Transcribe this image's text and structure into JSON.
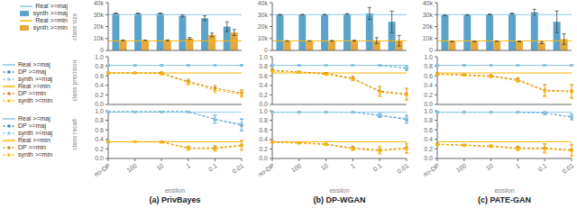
{
  "chart_data": [
    {
      "type": "bar",
      "y_label": "class size",
      "categories": [
        "no-DP",
        "100",
        "10",
        "1",
        "0.1",
        "0.01"
      ],
      "ylim": [
        0,
        40000
      ],
      "yticks": [
        0,
        {
          "value": 10000,
          "label": "10k"
        },
        {
          "value": 20000,
          "label": "20k"
        },
        {
          "value": 30000,
          "label": "30k"
        },
        {
          "value": 40000,
          "label": "40k"
        }
      ],
      "tick_labels": "y",
      "grid": false,
      "legend": "upper right",
      "series": [
        {
          "name": "Real >=maj",
          "type": "hline",
          "color": "#8ECAE6",
          "value": 30000
        },
        {
          "name": "synth >=maj",
          "type": "bar",
          "color": "#5BA3C9",
          "values": [
            31000,
            31000,
            31000,
            29000,
            27000,
            20000
          ],
          "errors": [
            300,
            300,
            400,
            800,
            2000,
            4000
          ]
        },
        {
          "name": "Real >=min",
          "type": "hline",
          "color": "#FFB703",
          "value": 8000
        },
        {
          "name": "synth >=min",
          "type": "bar",
          "color": "#E8A838",
          "values": [
            8500,
            8500,
            8500,
            10000,
            13000,
            15000
          ],
          "errors": [
            200,
            200,
            300,
            800,
            1500,
            2500
          ]
        }
      ]
    },
    {
      "type": "bar",
      "categories": [
        "no-DP",
        "100",
        "10",
        "1",
        "0.1",
        "0.01"
      ],
      "ylim": [
        0,
        40000
      ],
      "yticks": [
        0,
        {
          "value": 10000,
          "label": "10k"
        },
        {
          "value": 20000,
          "label": "20k"
        },
        {
          "value": 30000,
          "label": "30k"
        },
        {
          "value": 40000,
          "label": "40k"
        }
      ],
      "tick_labels": "y",
      "grid": false,
      "series": [
        {
          "type": "hline",
          "color": "#8ECAE6",
          "value": 30000
        },
        {
          "type": "bar",
          "color": "#5BA3C9",
          "values": [
            30000,
            30000,
            30000,
            30500,
            31000,
            24000
          ],
          "errors": [
            200,
            200,
            200,
            300,
            5000,
            9000
          ]
        },
        {
          "type": "hline",
          "color": "#FFB703",
          "value": 8000
        },
        {
          "type": "bar",
          "color": "#E8A838",
          "values": [
            8000,
            8000,
            8100,
            8200,
            8200,
            8100
          ],
          "errors": [
            100,
            100,
            150,
            300,
            2500,
            4500
          ]
        }
      ]
    },
    {
      "type": "bar",
      "categories": [
        "no-DP",
        "100",
        "10",
        "1",
        "0.1",
        "0.01"
      ],
      "ylim": [
        0,
        40000
      ],
      "yticks": [
        0,
        {
          "value": 10000,
          "label": "10k"
        },
        {
          "value": 20000,
          "label": "20k"
        },
        {
          "value": 30000,
          "label": "30k"
        },
        {
          "value": 40000,
          "label": "40k"
        }
      ],
      "tick_labels": "y",
      "grid": false,
      "series": [
        {
          "type": "hline",
          "color": "#8ECAE6",
          "value": 30000
        },
        {
          "type": "bar",
          "color": "#5BA3C9",
          "values": [
            29500,
            29800,
            30200,
            30800,
            32000,
            24000
          ],
          "errors": [
            200,
            200,
            300,
            500,
            2500,
            9000
          ]
        },
        {
          "type": "hline",
          "color": "#FFB703",
          "value": 8000
        },
        {
          "type": "bar",
          "color": "#E8A838",
          "values": [
            7500,
            7600,
            7700,
            7500,
            6500,
            9500
          ],
          "errors": [
            100,
            100,
            150,
            350,
            800,
            4500
          ]
        }
      ]
    },
    {
      "type": "line",
      "y_label": "class precision",
      "categories": [
        "no-DP",
        "100",
        "10",
        "1",
        "0.1",
        "0.01"
      ],
      "ylim": [
        0,
        1
      ],
      "yticks": [
        {
          "value": 0,
          "label": "0.0"
        },
        0.2,
        0.4,
        0.6,
        0.8,
        {
          "value": 1,
          "label": "1.0"
        }
      ],
      "tick_labels": "y",
      "grid": false,
      "legend": "lower left",
      "series": [
        {
          "name": "Real >=maj",
          "type": "hline",
          "color": "#8ECAE6",
          "value": 0.82
        },
        {
          "name": "DP >=maj",
          "type": "line",
          "color": "#3A7FB5",
          "line_style": "dashed",
          "marker": "square",
          "values": [
            0.82,
            0.82,
            0.82,
            0.82,
            0.82,
            0.82
          ],
          "errors": [
            0.005,
            0.005,
            0.005,
            0.005,
            0.005,
            0.005
          ]
        },
        {
          "name": "synth >=maj",
          "type": "line",
          "color": "#8ECAE6",
          "line_style": "dashed",
          "marker": "square",
          "values": [
            0.82,
            0.82,
            0.82,
            0.82,
            0.82,
            0.82
          ],
          "errors": [
            0.005,
            0.005,
            0.005,
            0.005,
            0.005,
            0.005
          ]
        },
        {
          "name": "Real >=min",
          "type": "hline",
          "color": "#FFB703",
          "value": 0.66
        },
        {
          "name": "DP >=min",
          "type": "line",
          "color": "#C8861A",
          "line_style": "dashed",
          "marker": "square",
          "values": [
            0.66,
            0.66,
            0.66,
            0.48,
            0.34,
            0.24
          ],
          "errors": [
            0.01,
            0.01,
            0.02,
            0.05,
            0.06,
            0.07
          ]
        },
        {
          "name": "synth >=min",
          "type": "line",
          "color": "#FFB703",
          "line_style": "dashed",
          "marker": "square",
          "values": [
            0.66,
            0.66,
            0.64,
            0.46,
            0.3,
            0.22
          ],
          "errors": [
            0.01,
            0.01,
            0.02,
            0.05,
            0.06,
            0.07
          ]
        }
      ]
    },
    {
      "type": "line",
      "categories": [
        "no-DP",
        "100",
        "10",
        "1",
        "0.1",
        "0.01"
      ],
      "ylim": [
        0,
        1
      ],
      "yticks": [
        {
          "value": 0,
          "label": "0.0"
        },
        0.2,
        0.4,
        0.6,
        0.8,
        {
          "value": 1,
          "label": "1.0"
        }
      ],
      "tick_labels": "y",
      "grid": false,
      "series": [
        {
          "type": "hline",
          "color": "#8ECAE6",
          "value": 0.82
        },
        {
          "type": "line",
          "color": "#3A7FB5",
          "line_style": "dashed",
          "marker": "square",
          "values": [
            0.82,
            0.82,
            0.82,
            0.82,
            0.82,
            0.76
          ],
          "errors": [
            0.005,
            0.005,
            0.005,
            0.005,
            0.005,
            0.05
          ]
        },
        {
          "type": "line",
          "color": "#8ECAE6",
          "line_style": "dashed",
          "marker": "square",
          "values": [
            0.82,
            0.82,
            0.82,
            0.82,
            0.82,
            0.77
          ],
          "errors": [
            0.005,
            0.005,
            0.005,
            0.005,
            0.005,
            0.05
          ]
        },
        {
          "type": "hline",
          "color": "#FFB703",
          "value": 0.66
        },
        {
          "type": "line",
          "color": "#C8861A",
          "line_style": "dashed",
          "marker": "square",
          "values": [
            0.72,
            0.68,
            0.65,
            0.55,
            0.28,
            0.22
          ],
          "errors": [
            0.015,
            0.015,
            0.02,
            0.04,
            0.1,
            0.12
          ]
        },
        {
          "type": "line",
          "color": "#FFB703",
          "line_style": "dashed",
          "marker": "square",
          "values": [
            0.7,
            0.67,
            0.63,
            0.53,
            0.26,
            0.2
          ],
          "errors": [
            0.015,
            0.015,
            0.02,
            0.04,
            0.1,
            0.12
          ]
        }
      ]
    },
    {
      "type": "line",
      "categories": [
        "no-DP",
        "100",
        "10",
        "1",
        "0.1",
        "0.01"
      ],
      "ylim": [
        0,
        1
      ],
      "yticks": [
        {
          "value": 0,
          "label": "0.0"
        },
        0.2,
        0.4,
        0.6,
        0.8,
        {
          "value": 1,
          "label": "1.0"
        }
      ],
      "tick_labels": "y",
      "grid": false,
      "series": [
        {
          "type": "hline",
          "color": "#8ECAE6",
          "value": 0.82
        },
        {
          "type": "line",
          "color": "#3A7FB5",
          "line_style": "dashed",
          "marker": "square",
          "values": [
            0.82,
            0.82,
            0.82,
            0.82,
            0.82,
            0.82
          ],
          "errors": [
            0.005,
            0.005,
            0.005,
            0.005,
            0.005,
            0.005
          ]
        },
        {
          "type": "line",
          "color": "#8ECAE6",
          "line_style": "dashed",
          "marker": "square",
          "values": [
            0.82,
            0.82,
            0.82,
            0.82,
            0.82,
            0.82
          ],
          "errors": [
            0.005,
            0.005,
            0.005,
            0.005,
            0.005,
            0.005
          ]
        },
        {
          "type": "hline",
          "color": "#FFB703",
          "value": 0.66
        },
        {
          "type": "line",
          "color": "#C8861A",
          "line_style": "dashed",
          "marker": "square",
          "values": [
            0.64,
            0.62,
            0.6,
            0.52,
            0.3,
            0.28
          ],
          "errors": [
            0.015,
            0.015,
            0.02,
            0.04,
            0.12,
            0.14
          ]
        },
        {
          "type": "line",
          "color": "#FFB703",
          "line_style": "dashed",
          "marker": "square",
          "values": [
            0.63,
            0.61,
            0.58,
            0.5,
            0.28,
            0.26
          ],
          "errors": [
            0.015,
            0.015,
            0.02,
            0.04,
            0.12,
            0.14
          ]
        }
      ]
    },
    {
      "type": "line",
      "title": "(a) PrivBayes",
      "x_label": "epsilon",
      "y_label": "class recall",
      "categories": [
        "no-DP",
        "100",
        "10",
        "1",
        "0.1",
        "0.01"
      ],
      "ylim": [
        0,
        1
      ],
      "yticks": [
        {
          "value": 0,
          "label": "0.0"
        },
        0.2,
        0.4,
        0.6,
        0.8,
        {
          "value": 1,
          "label": "1.0"
        }
      ],
      "grid": false,
      "legend": "lower left",
      "series": [
        {
          "name": "Real >=maj",
          "type": "hline",
          "color": "#8ECAE6",
          "value": 0.97
        },
        {
          "name": "DP >=maj",
          "type": "line",
          "color": "#3A7FB5",
          "line_style": "dashed",
          "marker": "square",
          "values": [
            0.98,
            0.98,
            0.98,
            0.98,
            0.82,
            0.7
          ],
          "errors": [
            0.005,
            0.005,
            0.005,
            0.005,
            0.08,
            0.12
          ]
        },
        {
          "name": "synth >=maj",
          "type": "line",
          "color": "#8ECAE6",
          "line_style": "dashed",
          "marker": "square",
          "values": [
            0.98,
            0.98,
            0.98,
            0.98,
            0.83,
            0.72
          ],
          "errors": [
            0.005,
            0.005,
            0.005,
            0.005,
            0.08,
            0.12
          ]
        },
        {
          "name": "Real >=min",
          "type": "hline",
          "color": "#FFB703",
          "value": 0.35
        },
        {
          "name": "DP >=min",
          "type": "line",
          "color": "#C8861A",
          "line_style": "dashed",
          "marker": "square",
          "values": [
            0.35,
            0.35,
            0.35,
            0.22,
            0.22,
            0.28
          ],
          "errors": [
            0.01,
            0.01,
            0.01,
            0.04,
            0.05,
            0.1
          ]
        },
        {
          "name": "synth >=min",
          "type": "line",
          "color": "#FFB703",
          "line_style": "dashed",
          "marker": "square",
          "values": [
            0.35,
            0.35,
            0.34,
            0.21,
            0.2,
            0.27
          ],
          "errors": [
            0.01,
            0.01,
            0.01,
            0.04,
            0.05,
            0.1
          ]
        }
      ]
    },
    {
      "type": "line",
      "title": "(b) DP-WGAN",
      "x_label": "epsilon",
      "categories": [
        "no-DP",
        "100",
        "10",
        "1",
        "0.1",
        "0.01"
      ],
      "ylim": [
        0,
        1
      ],
      "yticks": [
        {
          "value": 0,
          "label": "0.0"
        },
        0.2,
        0.4,
        0.6,
        0.8,
        {
          "value": 1,
          "label": "1.0"
        }
      ],
      "grid": false,
      "series": [
        {
          "type": "hline",
          "color": "#8ECAE6",
          "value": 0.97
        },
        {
          "type": "line",
          "color": "#3A7FB5",
          "line_style": "dashed",
          "marker": "square",
          "values": [
            0.97,
            0.97,
            0.97,
            0.97,
            0.9,
            0.82
          ],
          "errors": [
            0.005,
            0.005,
            0.005,
            0.005,
            0.04,
            0.08
          ]
        },
        {
          "type": "line",
          "color": "#8ECAE6",
          "line_style": "dashed",
          "marker": "square",
          "values": [
            0.97,
            0.97,
            0.97,
            0.97,
            0.91,
            0.84
          ],
          "errors": [
            0.005,
            0.005,
            0.005,
            0.005,
            0.04,
            0.08
          ]
        },
        {
          "type": "hline",
          "color": "#FFB703",
          "value": 0.35
        },
        {
          "type": "line",
          "color": "#C8861A",
          "line_style": "dashed",
          "marker": "square",
          "values": [
            0.35,
            0.33,
            0.3,
            0.22,
            0.18,
            0.22
          ],
          "errors": [
            0.015,
            0.015,
            0.02,
            0.04,
            0.07,
            0.1
          ]
        },
        {
          "type": "line",
          "color": "#FFB703",
          "line_style": "dashed",
          "marker": "square",
          "values": [
            0.34,
            0.32,
            0.29,
            0.2,
            0.16,
            0.2
          ],
          "errors": [
            0.015,
            0.015,
            0.02,
            0.04,
            0.07,
            0.1
          ]
        }
      ]
    },
    {
      "type": "line",
      "title": "(c) PATE-GAN",
      "x_label": "epsilon",
      "categories": [
        "no-DP",
        "100",
        "10",
        "1",
        "0.1",
        "0.01"
      ],
      "ylim": [
        0,
        1
      ],
      "yticks": [
        {
          "value": 0,
          "label": "0.0"
        },
        0.2,
        0.4,
        0.6,
        0.8,
        {
          "value": 1,
          "label": "1.0"
        }
      ],
      "grid": false,
      "series": [
        {
          "type": "hline",
          "color": "#8ECAE6",
          "value": 0.97
        },
        {
          "type": "line",
          "color": "#3A7FB5",
          "line_style": "dashed",
          "marker": "square",
          "values": [
            0.97,
            0.97,
            0.97,
            0.97,
            0.95,
            0.87
          ],
          "errors": [
            0.005,
            0.005,
            0.005,
            0.005,
            0.03,
            0.06
          ]
        },
        {
          "type": "line",
          "color": "#8ECAE6",
          "line_style": "dashed",
          "marker": "square",
          "values": [
            0.97,
            0.97,
            0.97,
            0.97,
            0.95,
            0.88
          ],
          "errors": [
            0.005,
            0.005,
            0.005,
            0.005,
            0.03,
            0.06
          ]
        },
        {
          "type": "hline",
          "color": "#FFB703",
          "value": 0.35
        },
        {
          "type": "line",
          "color": "#C8861A",
          "line_style": "dashed",
          "marker": "square",
          "values": [
            0.3,
            0.28,
            0.26,
            0.22,
            0.22,
            0.18
          ],
          "errors": [
            0.015,
            0.015,
            0.02,
            0.04,
            0.09,
            0.12
          ]
        },
        {
          "type": "line",
          "color": "#FFB703",
          "line_style": "dashed",
          "marker": "square",
          "values": [
            0.29,
            0.27,
            0.25,
            0.2,
            0.2,
            0.16
          ],
          "errors": [
            0.015,
            0.015,
            0.02,
            0.04,
            0.09,
            0.12
          ]
        }
      ]
    }
  ]
}
